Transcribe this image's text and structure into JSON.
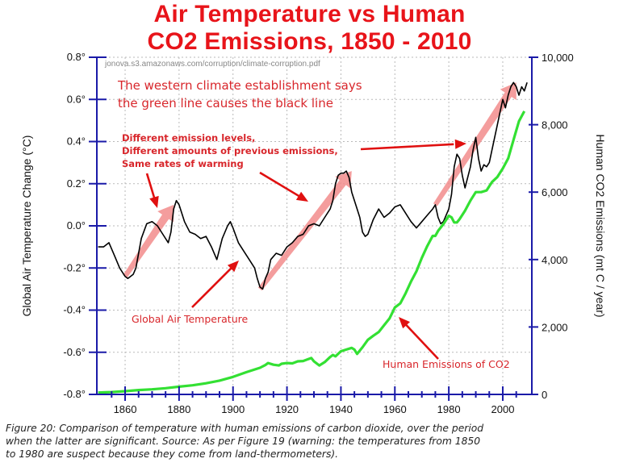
{
  "chart_data": {
    "type": "line",
    "title": [
      "Air Temperature vs Human",
      "CO2 Emissions, 1850 - 2010"
    ],
    "xlabel": "",
    "ylabel_left": "Global Air Temperature Change  (°C)",
    "ylabel_right": "Human CO2 Emissions  (mt C / year)",
    "xlim": [
      1850,
      2010
    ],
    "ylim_left": [
      -0.8,
      0.8
    ],
    "ylim_right": [
      0,
      10000
    ],
    "x_ticks": [
      1860,
      1880,
      1900,
      1920,
      1940,
      1960,
      1980,
      2000
    ],
    "x_tick_labels": [
      "1860",
      "1880",
      "1900",
      "1920",
      "1940",
      "1960",
      "1980",
      "2000"
    ],
    "y_left_ticks": [
      0.8,
      0.6,
      0.4,
      0.2,
      0.0,
      -0.2,
      -0.4,
      -0.6,
      -0.8
    ],
    "y_left_tick_labels": [
      "0.8°",
      "0.6°",
      "0.4°",
      "0.2°",
      "0.0°",
      "-0.2°",
      "-0.4°",
      "-0.6°",
      "-0.8°"
    ],
    "y_right_ticks": [
      10000,
      8000,
      6000,
      4000,
      2000,
      0
    ],
    "y_right_tick_labels": [
      "10,000",
      "8,000",
      "6,000",
      "4,000",
      "2,000",
      "0"
    ],
    "grid": true,
    "series": [
      {
        "name": "Global Air Temperature",
        "axis": "left",
        "color": "#000000",
        "x": [
          1850,
          1852,
          1854,
          1856,
          1858,
          1860,
          1861,
          1862,
          1863,
          1864,
          1866,
          1868,
          1870,
          1872,
          1874,
          1876,
          1877,
          1878,
          1879,
          1880,
          1882,
          1884,
          1886,
          1888,
          1890,
          1892,
          1894,
          1896,
          1898,
          1899,
          1900,
          1902,
          1904,
          1906,
          1908,
          1909,
          1910,
          1911,
          1912,
          1913,
          1914,
          1916,
          1918,
          1920,
          1922,
          1924,
          1926,
          1928,
          1930,
          1932,
          1934,
          1936,
          1937,
          1938,
          1939,
          1940,
          1941,
          1942,
          1943,
          1944,
          1946,
          1947,
          1948,
          1949,
          1950,
          1952,
          1954,
          1956,
          1958,
          1960,
          1962,
          1964,
          1966,
          1968,
          1970,
          1972,
          1974,
          1975,
          1976,
          1977,
          1978,
          1980,
          1981,
          1982,
          1983,
          1984,
          1985,
          1986,
          1988,
          1989,
          1990,
          1991,
          1992,
          1993,
          1994,
          1995,
          1996,
          1998,
          1999,
          2000,
          2001,
          2002,
          2003,
          2004,
          2005,
          2006,
          2007,
          2008,
          2009
        ],
        "y": [
          -0.1,
          -0.1,
          -0.08,
          -0.14,
          -0.2,
          -0.24,
          -0.25,
          -0.24,
          -0.23,
          -0.2,
          -0.06,
          0.01,
          0.02,
          0.0,
          -0.04,
          -0.08,
          -0.03,
          0.08,
          0.12,
          0.1,
          0.02,
          -0.03,
          -0.04,
          -0.06,
          -0.05,
          -0.1,
          -0.16,
          -0.06,
          0.0,
          0.02,
          -0.01,
          -0.08,
          -0.12,
          -0.16,
          -0.2,
          -0.25,
          -0.29,
          -0.3,
          -0.25,
          -0.22,
          -0.16,
          -0.13,
          -0.14,
          -0.1,
          -0.08,
          -0.05,
          -0.04,
          0.0,
          0.01,
          0.0,
          0.04,
          0.08,
          0.12,
          0.2,
          0.24,
          0.25,
          0.25,
          0.26,
          0.23,
          0.16,
          0.08,
          0.04,
          -0.03,
          -0.05,
          -0.04,
          0.03,
          0.08,
          0.04,
          0.06,
          0.09,
          0.1,
          0.06,
          0.02,
          -0.01,
          0.02,
          0.05,
          0.08,
          0.1,
          0.04,
          0.01,
          0.02,
          0.08,
          0.15,
          0.28,
          0.34,
          0.32,
          0.24,
          0.18,
          0.28,
          0.36,
          0.42,
          0.32,
          0.26,
          0.29,
          0.28,
          0.3,
          0.36,
          0.48,
          0.54,
          0.6,
          0.56,
          0.62,
          0.66,
          0.68,
          0.66,
          0.62,
          0.66,
          0.64,
          0.68
        ]
      },
      {
        "name": "Human Emissions of CO2",
        "axis": "right",
        "color": "#33e033",
        "x": [
          1850,
          1855,
          1860,
          1865,
          1870,
          1875,
          1880,
          1885,
          1890,
          1895,
          1900,
          1905,
          1908,
          1910,
          1912,
          1913,
          1915,
          1917,
          1918,
          1920,
          1922,
          1924,
          1926,
          1928,
          1929,
          1930,
          1932,
          1934,
          1936,
          1937,
          1938,
          1940,
          1942,
          1944,
          1945,
          1946,
          1948,
          1950,
          1952,
          1954,
          1956,
          1958,
          1960,
          1962,
          1964,
          1966,
          1968,
          1970,
          1972,
          1974,
          1975,
          1976,
          1978,
          1980,
          1981,
          1982,
          1983,
          1984,
          1986,
          1988,
          1990,
          1992,
          1994,
          1996,
          1998,
          2000,
          2002,
          2004,
          2006,
          2008
        ],
        "y": [
          55,
          70,
          95,
          130,
          150,
          185,
          230,
          270,
          330,
          410,
          520,
          660,
          740,
          790,
          870,
          930,
          880,
          860,
          910,
          930,
          920,
          980,
          990,
          1050,
          1080,
          980,
          860,
          960,
          1110,
          1170,
          1130,
          1280,
          1330,
          1380,
          1330,
          1200,
          1400,
          1620,
          1740,
          1850,
          2050,
          2250,
          2580,
          2700,
          3000,
          3350,
          3650,
          4050,
          4400,
          4700,
          4700,
          4850,
          5050,
          5300,
          5250,
          5100,
          5100,
          5200,
          5450,
          5750,
          6000,
          6000,
          6050,
          6300,
          6450,
          6700,
          7000,
          7550,
          8100,
          8400
        ]
      }
    ],
    "annotations": [
      {
        "text": "The western climate establishment says",
        "color": "#d8262b"
      },
      {
        "text": "the green line causes the black line",
        "color": "#d8262b"
      },
      {
        "text": "Different emission levels,",
        "color": "#d8262b"
      },
      {
        "text": "Different amounts of previous emissions,",
        "color": "#d8262b"
      },
      {
        "text": "Same rates of warming",
        "color": "#d8262b"
      },
      {
        "text": "Global Air Temperature",
        "color": "#d8262b"
      },
      {
        "text": "Human Emissions of CO2",
        "color": "#d8262b"
      }
    ],
    "warming_trend_arrows": [
      {
        "from": [
          1860,
          -0.24
        ],
        "to": [
          1878,
          0.1
        ]
      },
      {
        "from": [
          1910,
          -0.3
        ],
        "to": [
          1944,
          0.26
        ]
      },
      {
        "from": [
          1975,
          0.1
        ],
        "to": [
          2005,
          0.68
        ]
      }
    ],
    "source_url": "jonova.s3.amazonaws.com/corruption/climate-corruption.pdf"
  },
  "caption": {
    "line1": "Figure 20: Comparison of temperature with human emissions of carbon dioxide, over the period",
    "line2": "when the latter are significant. Source: As per Figure 19 (warning: the temperatures from 1850",
    "line3": "to 1980 are suspect because they come from land-thermometers)."
  },
  "colors": {
    "title": "#e8141a",
    "axis": "#1a1aa8",
    "grid": "#b9b9b9",
    "trend_arrow": "#f28c8c",
    "pointer_arrow": "#e01010"
  }
}
